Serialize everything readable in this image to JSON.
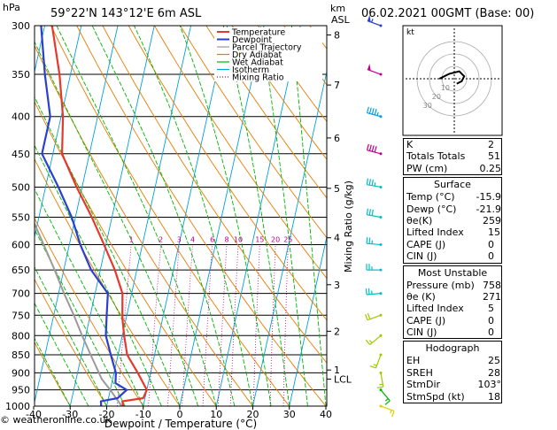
{
  "header": {
    "location": "59°22'N 143°12'E 6m ASL",
    "datetime": "06.02.2021 00GMT (Base: 00)",
    "hpa_label": "hPa",
    "km_label": "km",
    "asl_label": "ASL"
  },
  "chart_data": {
    "type": "skew-t",
    "xlabel": "Dewpoint / Temperature (°C)",
    "y2label": "Mixing Ratio (g/kg)",
    "x_ticks": [
      -40,
      -30,
      -20,
      -10,
      0,
      10,
      20,
      30,
      40
    ],
    "pressure_levels": [
      300,
      350,
      400,
      450,
      500,
      550,
      600,
      650,
      700,
      750,
      800,
      850,
      900,
      950,
      1000
    ],
    "km_ticks": [
      {
        "label": "8",
        "p": 309
      },
      {
        "label": "7",
        "p": 362
      },
      {
        "label": "6",
        "p": 428
      },
      {
        "label": "5",
        "p": 502
      },
      {
        "label": "4",
        "p": 587
      },
      {
        "label": "3",
        "p": 681
      },
      {
        "label": "2",
        "p": 789
      },
      {
        "label": "1",
        "p": 892
      },
      {
        "label": "LCL",
        "p": 918
      }
    ],
    "mixing_ratio_labels": [
      "1",
      "2",
      "3",
      "4",
      "6",
      "8",
      "10",
      "15",
      "20",
      "25"
    ],
    "mixing_ratio_values": [
      1,
      2,
      3,
      4,
      6,
      8,
      10,
      15,
      20,
      25
    ],
    "legend": [
      "Temperature",
      "Dewpoint",
      "Parcel Trajectory",
      "Dry Adiabat",
      "Wet Adiabat",
      "Isotherm",
      "Mixing Ratio"
    ],
    "colors": {
      "temperature": "#e8382c",
      "dewpoint": "#2a3fcf",
      "parcel": "#9a9a9a",
      "dry_adiabat": "#e87c00",
      "wet_adiabat": "#00b400",
      "isotherm": "#00a0e0",
      "mixing_ratio": "#c0008a"
    },
    "temperature": [
      {
        "p": 1000,
        "t": -15.5
      },
      {
        "p": 985,
        "t": -16.0
      },
      {
        "p": 975,
        "t": -10.5
      },
      {
        "p": 950,
        "t": -10.0
      },
      {
        "p": 900,
        "t": -13.5
      },
      {
        "p": 850,
        "t": -17.5
      },
      {
        "p": 800,
        "t": -19.5
      },
      {
        "p": 758,
        "t": -21.0
      },
      {
        "p": 700,
        "t": -22.5
      },
      {
        "p": 650,
        "t": -26.0
      },
      {
        "p": 600,
        "t": -30.5
      },
      {
        "p": 550,
        "t": -35.5
      },
      {
        "p": 500,
        "t": -41.5
      },
      {
        "p": 450,
        "t": -47.5
      },
      {
        "p": 400,
        "t": -49.5
      },
      {
        "p": 350,
        "t": -53.0
      },
      {
        "p": 300,
        "t": -58.0
      }
    ],
    "dewpoint": [
      {
        "p": 1000,
        "t": -21.5
      },
      {
        "p": 985,
        "t": -21.9
      },
      {
        "p": 975,
        "t": -17.5
      },
      {
        "p": 950,
        "t": -15.5
      },
      {
        "p": 930,
        "t": -19.0
      },
      {
        "p": 900,
        "t": -19.5
      },
      {
        "p": 850,
        "t": -22.0
      },
      {
        "p": 800,
        "t": -24.5
      },
      {
        "p": 750,
        "t": -25.5
      },
      {
        "p": 700,
        "t": -26.5
      },
      {
        "p": 650,
        "t": -32.5
      },
      {
        "p": 600,
        "t": -37.0
      },
      {
        "p": 550,
        "t": -41.0
      },
      {
        "p": 500,
        "t": -46.5
      },
      {
        "p": 450,
        "t": -53.0
      },
      {
        "p": 400,
        "t": -53.0
      },
      {
        "p": 350,
        "t": -57.0
      },
      {
        "p": 300,
        "t": -61.0
      }
    ],
    "parcel": [
      {
        "p": 1000,
        "t": -15.9
      },
      {
        "p": 950,
        "t": -20.0
      },
      {
        "p": 918,
        "t": -23.0
      },
      {
        "p": 850,
        "t": -27.5
      },
      {
        "p": 800,
        "t": -31.0
      },
      {
        "p": 750,
        "t": -34.5
      },
      {
        "p": 700,
        "t": -38.5
      },
      {
        "p": 650,
        "t": -42.5
      },
      {
        "p": 600,
        "t": -47.0
      },
      {
        "p": 550,
        "t": -52.0
      },
      {
        "p": 500,
        "t": -57.5
      }
    ],
    "wind_barbs": [
      {
        "p": 300,
        "dir": 290,
        "spd": 55,
        "color": "#2a3fcf"
      },
      {
        "p": 350,
        "dir": 290,
        "spd": 50,
        "color": "#c0008a"
      },
      {
        "p": 400,
        "dir": 285,
        "spd": 45,
        "color": "#00a0e0"
      },
      {
        "p": 450,
        "dir": 285,
        "spd": 40,
        "color": "#c0008a"
      },
      {
        "p": 500,
        "dir": 280,
        "spd": 35,
        "color": "#00c0c0"
      },
      {
        "p": 550,
        "dir": 280,
        "spd": 30,
        "color": "#00c0c0"
      },
      {
        "p": 600,
        "dir": 275,
        "spd": 25,
        "color": "#00c0c0"
      },
      {
        "p": 650,
        "dir": 270,
        "spd": 25,
        "color": "#00c0c0"
      },
      {
        "p": 700,
        "dir": 265,
        "spd": 25,
        "color": "#00c0c0"
      },
      {
        "p": 750,
        "dir": 250,
        "spd": 20,
        "color": "#a0c800"
      },
      {
        "p": 800,
        "dir": 230,
        "spd": 15,
        "color": "#a0c800"
      },
      {
        "p": 850,
        "dir": 200,
        "spd": 15,
        "color": "#a0c800"
      },
      {
        "p": 900,
        "dir": 170,
        "spd": 15,
        "color": "#a0c800"
      },
      {
        "p": 950,
        "dir": 140,
        "spd": 15,
        "color": "#00b400"
      },
      {
        "p": 1000,
        "dir": 110,
        "spd": 15,
        "color": "#e0d000"
      }
    ],
    "hodograph": {
      "label": "kt",
      "ring_labels": [
        "10",
        "20",
        "30"
      ],
      "points": [
        {
          "u": 2,
          "v": -4
        },
        {
          "u": 6,
          "v": -2
        },
        {
          "u": 8,
          "v": 2
        },
        {
          "u": 4,
          "v": 6
        },
        {
          "u": -4,
          "v": 4
        },
        {
          "u": -8,
          "v": 2
        },
        {
          "u": -12,
          "v": 0
        }
      ]
    }
  },
  "indices": {
    "top": [
      {
        "label": "K",
        "value": "2"
      },
      {
        "label": "Totals Totals",
        "value": "51"
      },
      {
        "label": "PW (cm)",
        "value": "0.25"
      }
    ],
    "surface": {
      "title": "Surface",
      "rows": [
        {
          "label": "Temp (°C)",
          "value": "-15.9"
        },
        {
          "label": "Dewp (°C)",
          "value": "-21.9"
        },
        {
          "label": "θe(K)",
          "value": "259"
        },
        {
          "label": "Lifted Index",
          "value": "15"
        },
        {
          "label": "CAPE (J)",
          "value": "0"
        },
        {
          "label": "CIN (J)",
          "value": "0"
        }
      ]
    },
    "most_unstable": {
      "title": "Most Unstable",
      "rows": [
        {
          "label": "Pressure (mb)",
          "value": "758"
        },
        {
          "label": "θe (K)",
          "value": "271"
        },
        {
          "label": "Lifted Index",
          "value": "5"
        },
        {
          "label": "CAPE (J)",
          "value": "0"
        },
        {
          "label": "CIN (J)",
          "value": "0"
        }
      ]
    },
    "hodograph": {
      "title": "Hodograph",
      "rows": [
        {
          "label": "EH",
          "value": "25"
        },
        {
          "label": "SREH",
          "value": "28"
        },
        {
          "label": "StmDir",
          "value": "103°"
        },
        {
          "label": "StmSpd (kt)",
          "value": "18"
        }
      ]
    }
  },
  "footer": {
    "copyright": "© weatheronline.co.uk"
  }
}
